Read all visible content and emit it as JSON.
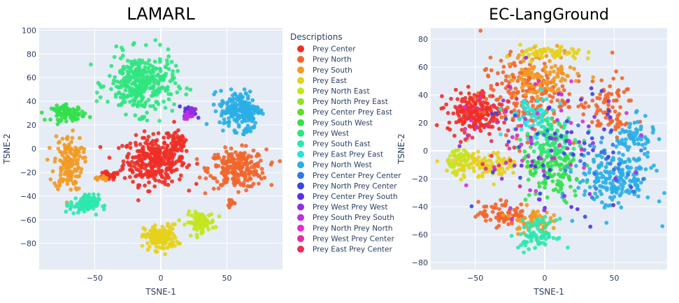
{
  "legend": {
    "title": "Descriptions",
    "placement": "center-between-plots",
    "entries": [
      {
        "name": "Prey Center",
        "color": "#ef2f26"
      },
      {
        "name": "Prey North",
        "color": "#f2662b"
      },
      {
        "name": "Prey South",
        "color": "#f29a22"
      },
      {
        "name": "Prey East",
        "color": "#e6d11d"
      },
      {
        "name": "Prey North East",
        "color": "#c4e51e"
      },
      {
        "name": "Prey North Prey East",
        "color": "#94e02a"
      },
      {
        "name": "Prey Center Prey East",
        "color": "#5ede2c"
      },
      {
        "name": "Prey South West",
        "color": "#33e04b"
      },
      {
        "name": "Prey West",
        "color": "#2ee57e"
      },
      {
        "name": "Prey South East",
        "color": "#2be8ae"
      },
      {
        "name": "Prey East Prey East",
        "color": "#29e2d8"
      },
      {
        "name": "Prey North West",
        "color": "#2aaee6"
      },
      {
        "name": "Prey Center Prey Center",
        "color": "#3377e6"
      },
      {
        "name": "Prey North Prey Center",
        "color": "#3a45e6"
      },
      {
        "name": "Prey Center Prey South",
        "color": "#5a2fe0"
      },
      {
        "name": "Prey West Prey West",
        "color": "#8f2fe0"
      },
      {
        "name": "Prey South Prey South",
        "color": "#c02fe0"
      },
      {
        "name": "Prey North Prey North",
        "color": "#e02ed6"
      },
      {
        "name": "Prey West Prey Center",
        "color": "#e02ea4"
      },
      {
        "name": "Prey East Prey Center",
        "color": "#e8305f"
      }
    ]
  },
  "chart_data": [
    {
      "type": "scatter",
      "title": "LAMARL",
      "xlabel": "TSNE-1",
      "ylabel": "TSNE-2",
      "xlim": [
        -92,
        92
      ],
      "ylim": [
        -102,
        102
      ],
      "xticks": [
        -50,
        0,
        50
      ],
      "yticks": [
        -80,
        -60,
        -40,
        -20,
        0,
        20,
        40,
        60,
        80,
        100
      ],
      "grid": true,
      "clusters": [
        {
          "series": "Prey Center",
          "cx": -5,
          "cy": -10,
          "rx": 26,
          "ry": 22,
          "n": 320
        },
        {
          "series": "Prey Center",
          "cx": 12,
          "cy": 5,
          "rx": 10,
          "ry": 12,
          "n": 50
        },
        {
          "series": "Prey Center",
          "cx": -40,
          "cy": -23,
          "rx": 10,
          "ry": 4,
          "n": 30
        },
        {
          "series": "Prey North",
          "cx": 58,
          "cy": -17,
          "rx": 24,
          "ry": 18,
          "n": 240
        },
        {
          "series": "Prey North",
          "cx": 53,
          "cy": -45,
          "rx": 3,
          "ry": 4,
          "n": 14
        },
        {
          "series": "Prey South",
          "cx": -70,
          "cy": -12,
          "rx": 12,
          "ry": 26,
          "n": 150
        },
        {
          "series": "Prey South",
          "cx": -45,
          "cy": -25,
          "rx": 5,
          "ry": 3,
          "n": 14
        },
        {
          "series": "Prey East",
          "cx": 0,
          "cy": -75,
          "rx": 14,
          "ry": 12,
          "n": 150
        },
        {
          "series": "Prey North East",
          "cx": 30,
          "cy": -62,
          "rx": 12,
          "ry": 9,
          "n": 90
        },
        {
          "series": "Prey South West",
          "cx": -70,
          "cy": 30,
          "rx": 14,
          "ry": 7,
          "n": 90
        },
        {
          "series": "Prey West",
          "cx": -15,
          "cy": 55,
          "rx": 28,
          "ry": 28,
          "n": 330
        },
        {
          "series": "Prey South East",
          "cx": -58,
          "cy": -47,
          "rx": 12,
          "ry": 9,
          "n": 90
        },
        {
          "series": "Prey North West",
          "cx": 60,
          "cy": 33,
          "rx": 17,
          "ry": 18,
          "n": 200
        },
        {
          "series": "Prey North West",
          "cx": 65,
          "cy": 15,
          "rx": 3,
          "ry": 3,
          "n": 12
        },
        {
          "series": "Prey Center Prey South",
          "cx": 22,
          "cy": 31,
          "rx": 5,
          "ry": 5,
          "n": 35
        },
        {
          "series": "Prey South Prey South",
          "cx": 21,
          "cy": 28,
          "rx": 4,
          "ry": 4,
          "n": 25
        },
        {
          "series": "Prey West Prey West",
          "cx": 24,
          "cy": 33,
          "rx": 3,
          "ry": 3,
          "n": 15
        }
      ]
    },
    {
      "type": "scatter",
      "title": "EC-LangGround",
      "xlabel": "TSNE-1",
      "ylabel": "TSNE-2",
      "xlim": [
        -82,
        88
      ],
      "ylim": [
        -85,
        88
      ],
      "xticks": [
        -50,
        0,
        50
      ],
      "yticks": [
        -80,
        -60,
        -40,
        -20,
        0,
        20,
        40,
        60,
        80
      ],
      "grid": true,
      "clusters": [
        {
          "series": "Prey Center",
          "cx": -50,
          "cy": 28,
          "rx": 22,
          "ry": 16,
          "n": 200
        },
        {
          "series": "Prey North",
          "cx": -15,
          "cy": 40,
          "rx": 35,
          "ry": 30,
          "n": 200
        },
        {
          "series": "Prey North",
          "cx": 45,
          "cy": 30,
          "rx": 22,
          "ry": 25,
          "n": 80
        },
        {
          "series": "Prey North",
          "cx": -30,
          "cy": -45,
          "rx": 20,
          "ry": 10,
          "n": 80
        },
        {
          "series": "Prey South",
          "cx": 0,
          "cy": 55,
          "rx": 30,
          "ry": 20,
          "n": 110
        },
        {
          "series": "Prey South",
          "cx": -10,
          "cy": -50,
          "rx": 15,
          "ry": 10,
          "n": 60
        },
        {
          "series": "Prey East",
          "cx": -45,
          "cy": -10,
          "rx": 30,
          "ry": 10,
          "n": 130
        },
        {
          "series": "Prey East",
          "cx": 5,
          "cy": 70,
          "rx": 25,
          "ry": 6,
          "n": 60
        },
        {
          "series": "Prey North East",
          "cx": -60,
          "cy": -5,
          "rx": 10,
          "ry": 10,
          "n": 40
        },
        {
          "series": "Prey South West",
          "cx": 5,
          "cy": -15,
          "rx": 25,
          "ry": 25,
          "n": 140
        },
        {
          "series": "Prey West",
          "cx": 5,
          "cy": 10,
          "rx": 20,
          "ry": 15,
          "n": 90
        },
        {
          "series": "Prey South East",
          "cx": -5,
          "cy": -60,
          "rx": 15,
          "ry": 12,
          "n": 80
        },
        {
          "series": "Prey East Prey East",
          "cx": -10,
          "cy": 25,
          "rx": 20,
          "ry": 15,
          "n": 60
        },
        {
          "series": "Prey North West",
          "cx": 50,
          "cy": -20,
          "rx": 30,
          "ry": 25,
          "n": 200
        },
        {
          "series": "Prey North West",
          "cx": 65,
          "cy": 10,
          "rx": 15,
          "ry": 15,
          "n": 60
        },
        {
          "series": "Prey Center Prey Center",
          "cx": 40,
          "cy": -10,
          "rx": 40,
          "ry": 40,
          "n": 30
        },
        {
          "series": "Prey North Prey Center",
          "cx": 0,
          "cy": 0,
          "rx": 60,
          "ry": 50,
          "n": 30
        },
        {
          "series": "Prey Center Prey South",
          "cx": 20,
          "cy": 0,
          "rx": 50,
          "ry": 50,
          "n": 25
        },
        {
          "series": "Prey West Prey West",
          "cx": 0,
          "cy": 0,
          "rx": 60,
          "ry": 60,
          "n": 25
        },
        {
          "series": "Prey South Prey South",
          "cx": 0,
          "cy": 0,
          "rx": 60,
          "ry": 50,
          "n": 20
        },
        {
          "series": "Prey North Prey North",
          "cx": 0,
          "cy": 0,
          "rx": 60,
          "ry": 50,
          "n": 15
        },
        {
          "series": "Prey West Prey Center",
          "cx": -20,
          "cy": 0,
          "rx": 50,
          "ry": 50,
          "n": 15
        },
        {
          "series": "Prey East Prey Center",
          "cx": -40,
          "cy": 20,
          "rx": 30,
          "ry": 30,
          "n": 25
        }
      ]
    }
  ]
}
